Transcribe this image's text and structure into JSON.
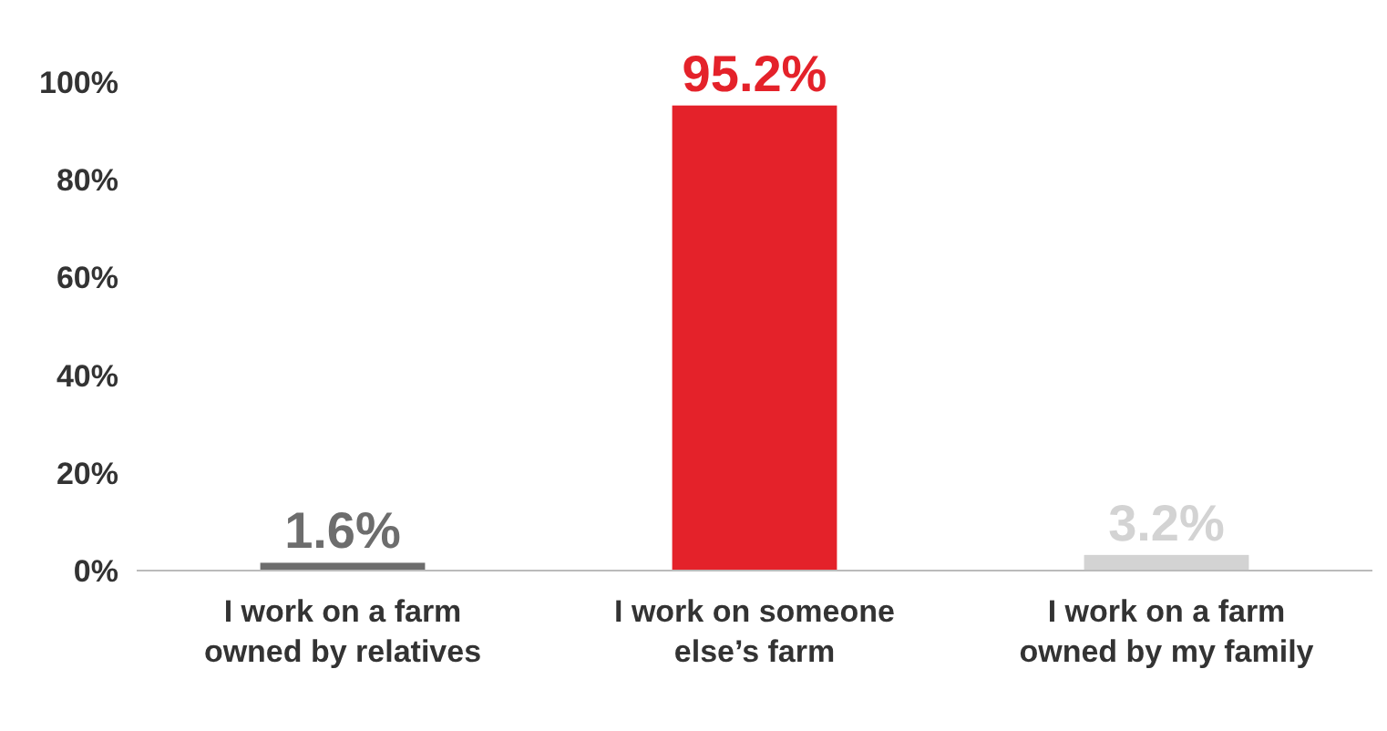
{
  "chart_data": {
    "type": "bar",
    "categories": [
      "I work on a farm owned by relatives",
      "I work on someone else’s farm",
      "I work on a farm owned by my family"
    ],
    "values": [
      1.6,
      95.2,
      3.2
    ],
    "colors": [
      "#6d6d6d",
      "#e4222a",
      "#d3d3d3"
    ],
    "value_labels": [
      "1.6%",
      "95.2%",
      "3.2%"
    ],
    "ylim": [
      0,
      100
    ],
    "yticks": [
      {
        "value": 0,
        "label": "0%"
      },
      {
        "value": 20,
        "label": "20%"
      },
      {
        "value": 40,
        "label": "40%"
      },
      {
        "value": 60,
        "label": "60%"
      },
      {
        "value": 80,
        "label": "80%"
      },
      {
        "value": 100,
        "label": "100%"
      }
    ],
    "grid": false
  }
}
